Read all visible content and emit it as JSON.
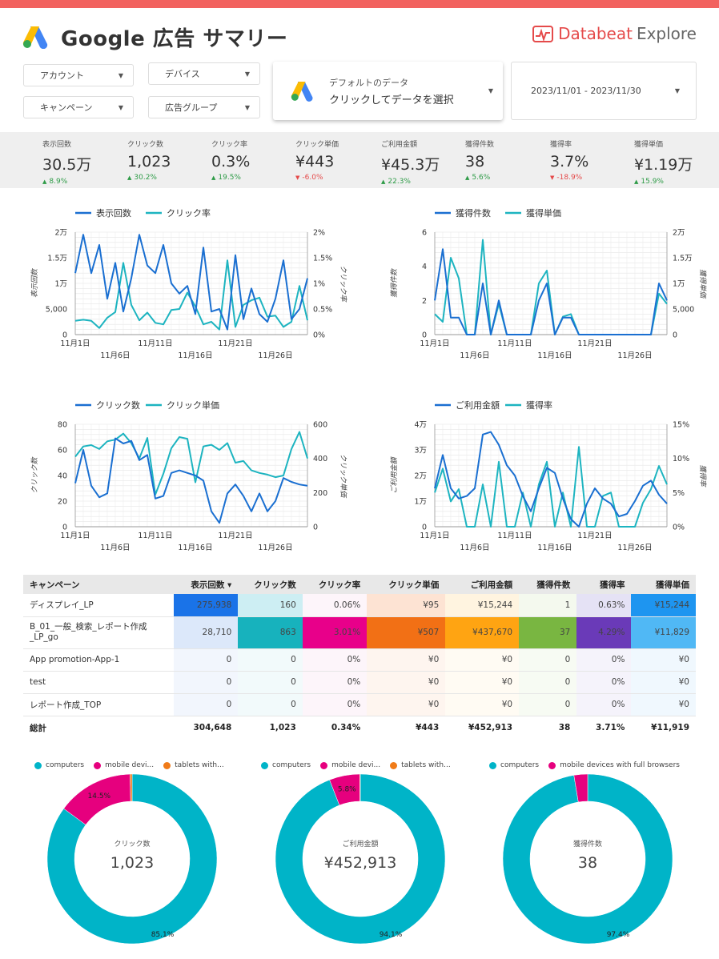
{
  "header": {
    "title": "Google 広告 サマリー",
    "brand_main": "Databeat",
    "brand_sub": "Explore"
  },
  "filters": {
    "account": "アカウント",
    "device": "デバイス",
    "campaign": "キャンペーン",
    "adgroup": "広告グループ",
    "data_source_line1": "デフォルトのデータ",
    "data_source_line2": "クリックしてデータを選択",
    "date_range": "2023/11/01 - 2023/11/30"
  },
  "kpis": [
    {
      "label": "表示回数",
      "value": "30.5万",
      "change": "8.9%",
      "dir": "up"
    },
    {
      "label": "クリック数",
      "value": "1,023",
      "change": "30.2%",
      "dir": "up"
    },
    {
      "label": "クリック率",
      "value": "0.3%",
      "change": "19.5%",
      "dir": "up"
    },
    {
      "label": "クリック単価",
      "value": "¥443",
      "change": "-6.0%",
      "dir": "down"
    },
    {
      "label": "ご利用金額",
      "value": "¥45.3万",
      "change": "22.3%",
      "dir": "up"
    },
    {
      "label": "獲得件数",
      "value": "38",
      "change": "5.6%",
      "dir": "up"
    },
    {
      "label": "獲得率",
      "value": "3.7%",
      "change": "-18.9%",
      "dir": "down"
    },
    {
      "label": "獲得単価",
      "value": "¥1.19万",
      "change": "15.9%",
      "dir": "up"
    }
  ],
  "colors": {
    "blue": "#1a6fd1",
    "teal": "#1db4c0",
    "up": "#2e9b47",
    "down": "#e54a4a"
  },
  "chart_data": [
    {
      "type": "line",
      "x": [
        "11月1日",
        "11月2日",
        "11月3日",
        "11月4日",
        "11月5日",
        "11月6日",
        "11月7日",
        "11月8日",
        "11月9日",
        "11月10日",
        "11月11日",
        "11月12日",
        "11月13日",
        "11月14日",
        "11月15日",
        "11月16日",
        "11月17日",
        "11月18日",
        "11月19日",
        "11月20日",
        "11月21日",
        "11月22日",
        "11月23日",
        "11月24日",
        "11月25日",
        "11月26日",
        "11月27日",
        "11月28日",
        "11月29日",
        "11月30日"
      ],
      "xticks_row1": [
        "11月1日",
        "11月11日",
        "11月21日"
      ],
      "xticks_row2": [
        "11月6日",
        "11月16日",
        "11月26日"
      ],
      "series": [
        {
          "name": "表示回数",
          "axis": "left",
          "color": "#1a6fd1",
          "values": [
            12000,
            19500,
            12000,
            17500,
            7000,
            14000,
            4500,
            11000,
            19500,
            13500,
            12000,
            17500,
            10000,
            8000,
            9500,
            4000,
            17000,
            4500,
            5000,
            1000,
            15500,
            3000,
            9000,
            4000,
            2500,
            7000,
            14500,
            3000,
            5000,
            11000
          ]
        },
        {
          "name": "クリック率",
          "axis": "right",
          "color": "#1db4c0",
          "values": [
            0.27,
            0.29,
            0.27,
            0.13,
            0.33,
            0.44,
            1.4,
            0.58,
            0.28,
            0.43,
            0.23,
            0.2,
            0.48,
            0.5,
            0.82,
            0.55,
            0.2,
            0.25,
            0.1,
            1.45,
            0.15,
            0.58,
            0.67,
            0.72,
            0.35,
            0.37,
            0.15,
            0.25,
            0.95,
            0.28
          ]
        }
      ],
      "y_left_ticks": [
        "0",
        "5,000",
        "1万",
        "1.5万",
        "2万"
      ],
      "y_right_ticks": [
        "0%",
        "0.5%",
        "1%",
        "1.5%",
        "2%"
      ],
      "y_left_max": 20000,
      "y_right_max": 2,
      "ylabel_left": "表示回数",
      "ylabel_right": "クリック率"
    },
    {
      "type": "line",
      "x": [
        "11月1日",
        "11月2日",
        "11月3日",
        "11月4日",
        "11月5日",
        "11月6日",
        "11月7日",
        "11月8日",
        "11月9日",
        "11月10日",
        "11月11日",
        "11月12日",
        "11月13日",
        "11月14日",
        "11月15日",
        "11月16日",
        "11月17日",
        "11月18日",
        "11月19日",
        "11月20日",
        "11月21日",
        "11月22日",
        "11月23日",
        "11月24日",
        "11月25日",
        "11月26日",
        "11月27日",
        "11月28日",
        "11月29日",
        "11月30日"
      ],
      "xticks_row1": [
        "11月1日",
        "11月11日",
        "11月21日"
      ],
      "xticks_row2": [
        "11月6日",
        "11月16日",
        "11月26日"
      ],
      "series": [
        {
          "name": "獲得件数",
          "axis": "left",
          "color": "#1a6fd1",
          "values": [
            2,
            5,
            1,
            1,
            0,
            0,
            3,
            0,
            2,
            0,
            0,
            0,
            0,
            2,
            3,
            0,
            1,
            1,
            0,
            0,
            0,
            0,
            0,
            0,
            0,
            0,
            0,
            0,
            3,
            2
          ]
        },
        {
          "name": "獲得単価",
          "axis": "right",
          "color": "#1db4c0",
          "values": [
            4000,
            2500,
            15000,
            11000,
            0,
            0,
            18500,
            0,
            6000,
            0,
            0,
            0,
            0,
            10000,
            12500,
            0,
            3500,
            4000,
            0,
            0,
            0,
            0,
            0,
            0,
            0,
            0,
            0,
            0,
            8000,
            6000
          ]
        }
      ],
      "y_left_ticks": [
        "0",
        "2",
        "4",
        "6"
      ],
      "y_right_ticks": [
        "0",
        "5,000",
        "1万",
        "1.5万",
        "2万"
      ],
      "y_left_max": 6,
      "y_right_max": 20000,
      "ylabel_left": "獲得件数",
      "ylabel_right": "獲得単価"
    },
    {
      "type": "line",
      "x": [
        "11月1日",
        "11月2日",
        "11月3日",
        "11月4日",
        "11月5日",
        "11月6日",
        "11月7日",
        "11月8日",
        "11月9日",
        "11月10日",
        "11月11日",
        "11月12日",
        "11月13日",
        "11月14日",
        "11月15日",
        "11月16日",
        "11月17日",
        "11月18日",
        "11月19日",
        "11月20日",
        "11月21日",
        "11月22日",
        "11月23日",
        "11月24日",
        "11月25日",
        "11月26日",
        "11月27日",
        "11月28日",
        "11月29日",
        "11月30日"
      ],
      "xticks_row1": [
        "11月1日",
        "11月11日",
        "11月21日"
      ],
      "xticks_row2": [
        "11月6日",
        "11月16日",
        "11月26日"
      ],
      "series": [
        {
          "name": "クリック数",
          "axis": "left",
          "color": "#1a6fd1",
          "values": [
            34,
            60,
            32,
            23,
            26,
            69,
            65,
            67,
            52,
            56,
            22,
            24,
            42,
            44,
            42,
            40,
            36,
            12,
            3,
            26,
            33,
            24,
            12,
            26,
            12,
            20,
            38,
            35,
            33,
            32
          ]
        },
        {
          "name": "クリック単価",
          "axis": "right",
          "color": "#1db4c0",
          "values": [
            410,
            470,
            478,
            455,
            500,
            510,
            545,
            490,
            400,
            520,
            188,
            310,
            460,
            525,
            515,
            260,
            470,
            480,
            450,
            490,
            375,
            385,
            330,
            315,
            305,
            290,
            300,
            455,
            555,
            400
          ]
        }
      ],
      "y_left_ticks": [
        "0",
        "20",
        "40",
        "60",
        "80"
      ],
      "y_right_ticks": [
        "0",
        "200",
        "400",
        "600"
      ],
      "y_left_max": 80,
      "y_right_max": 600,
      "ylabel_left": "クリック数",
      "ylabel_right": "クリック単価"
    },
    {
      "type": "line",
      "x": [
        "11月1日",
        "11月2日",
        "11月3日",
        "11月4日",
        "11月5日",
        "11月6日",
        "11月7日",
        "11月8日",
        "11月9日",
        "11月10日",
        "11月11日",
        "11月12日",
        "11月13日",
        "11月14日",
        "11月15日",
        "11月16日",
        "11月17日",
        "11月18日",
        "11月19日",
        "11月20日",
        "11月21日",
        "11月22日",
        "11月23日",
        "11月24日",
        "11月25日",
        "11月26日",
        "11月27日",
        "11月28日",
        "11月29日",
        "11月30日"
      ],
      "xticks_row1": [
        "11月1日",
        "11月11日",
        "11月21日"
      ],
      "xticks_row2": [
        "11月6日",
        "11月16日",
        "11月26日"
      ],
      "series": [
        {
          "name": "ご利用金額",
          "axis": "left",
          "color": "#1a6fd1",
          "values": [
            15000,
            28000,
            15000,
            11000,
            12000,
            15000,
            36000,
            37000,
            32000,
            24000,
            20000,
            12000,
            6000,
            15000,
            23000,
            21000,
            11000,
            3000,
            0,
            9000,
            15000,
            11000,
            9000,
            4000,
            5000,
            10000,
            16000,
            18000,
            12500,
            9000
          ]
        },
        {
          "name": "獲得率",
          "axis": "right",
          "color": "#1db4c0",
          "values": [
            5,
            8.5,
            3.7,
            5.5,
            0,
            0,
            6.2,
            0,
            9.5,
            0,
            0,
            5,
            0,
            6.2,
            9.5,
            0,
            5,
            0,
            11.7,
            0,
            0,
            4.5,
            5,
            0,
            0,
            0,
            3.5,
            5.5,
            8.9,
            6.2
          ]
        }
      ],
      "y_left_ticks": [
        "0",
        "1万",
        "2万",
        "3万",
        "4万"
      ],
      "y_right_ticks": [
        "0%",
        "5%",
        "10%",
        "15%"
      ],
      "y_left_max": 40000,
      "y_right_max": 15,
      "ylabel_left": "ご利用金額",
      "ylabel_right": "獲得率"
    },
    {
      "type": "table",
      "columns": [
        "キャンペーン",
        "表示回数 ▾",
        "クリック数",
        "クリック率",
        "クリック単価",
        "ご利用金額",
        "獲得件数",
        "獲得率",
        "獲得単価"
      ],
      "rows": [
        [
          "ディスプレイ_LP",
          "275,938",
          "160",
          "0.06%",
          "¥95",
          "¥15,244",
          "1",
          "0.63%",
          "¥15,244"
        ],
        [
          "B_01_一般_検索_レポート作成_LP_go",
          "28,710",
          "863",
          "3.01%",
          "¥507",
          "¥437,670",
          "37",
          "4.29%",
          "¥11,829"
        ],
        [
          "App promotion-App-1",
          "0",
          "0",
          "0%",
          "¥0",
          "¥0",
          "0",
          "0%",
          "¥0"
        ],
        [
          "test",
          "0",
          "0",
          "0%",
          "¥0",
          "¥0",
          "0",
          "0%",
          "¥0"
        ],
        [
          "レポート作成_TOP",
          "0",
          "0",
          "0%",
          "¥0",
          "¥0",
          "0",
          "0%",
          "¥0"
        ]
      ],
      "total": [
        "総計",
        "304,648",
        "1,023",
        "0.34%",
        "¥443",
        "¥452,913",
        "38",
        "3.71%",
        "¥11,919"
      ]
    },
    {
      "type": "pie",
      "center_label": "クリック数",
      "center_value": "1,023",
      "legend": [
        "computers",
        "mobile devi...",
        "tablets with..."
      ],
      "colors": [
        "#00b4c8",
        "#e6007e",
        "#f07b18"
      ],
      "values": [
        85.1,
        14.5,
        0.4
      ],
      "labels_shown": [
        "85.1%",
        "14.5%",
        ""
      ]
    },
    {
      "type": "pie",
      "center_label": "ご利用金額",
      "center_value": "¥452,913",
      "legend": [
        "computers",
        "mobile devi...",
        "tablets with..."
      ],
      "colors": [
        "#00b4c8",
        "#e6007e",
        "#f07b18"
      ],
      "values": [
        94.1,
        5.8,
        0.1
      ],
      "labels_shown": [
        "94.1%",
        "5.8%",
        ""
      ]
    },
    {
      "type": "pie",
      "center_label": "獲得件数",
      "center_value": "38",
      "legend": [
        "computers",
        "mobile devices with full browsers"
      ],
      "colors": [
        "#00b4c8",
        "#e6007e"
      ],
      "values": [
        97.4,
        2.6
      ],
      "labels_shown": [
        "97.4%",
        ""
      ]
    }
  ]
}
